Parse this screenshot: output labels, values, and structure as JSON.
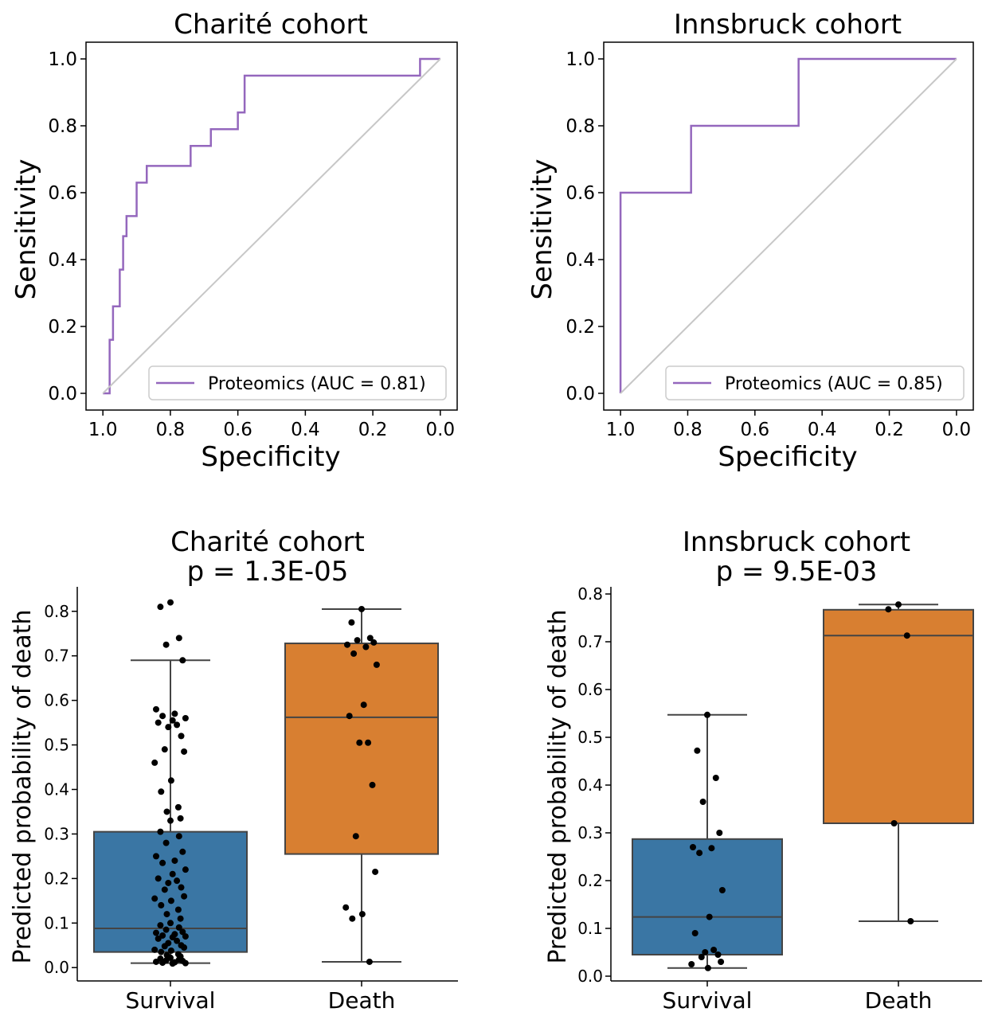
{
  "chart_data": [
    {
      "type": "line",
      "title": "Charité cohort",
      "xlabel": "Specificity",
      "ylabel": "Sensitivity",
      "xlim": [
        1.05,
        -0.05
      ],
      "ylim": [
        -0.05,
        1.05
      ],
      "x_ticks": [
        "1.0",
        "0.8",
        "0.6",
        "0.4",
        "0.2",
        "0.0"
      ],
      "y_ticks": [
        "0.0",
        "0.2",
        "0.4",
        "0.6",
        "0.8",
        "1.0"
      ],
      "legend": "lower-right",
      "series": [
        {
          "name": "Proteomics (AUC = 0.81)",
          "color": "#9467bd",
          "x": [
            1.0,
            0.98,
            0.98,
            0.97,
            0.97,
            0.95,
            0.95,
            0.94,
            0.94,
            0.93,
            0.93,
            0.9,
            0.9,
            0.87,
            0.87,
            0.83,
            0.83,
            0.74,
            0.74,
            0.68,
            0.68,
            0.6,
            0.6,
            0.58,
            0.58,
            0.06,
            0.06,
            0.0
          ],
          "y": [
            0.0,
            0.0,
            0.16,
            0.16,
            0.26,
            0.26,
            0.37,
            0.37,
            0.47,
            0.47,
            0.53,
            0.53,
            0.63,
            0.63,
            0.68,
            0.68,
            0.68,
            0.68,
            0.74,
            0.74,
            0.79,
            0.79,
            0.84,
            0.84,
            0.95,
            0.95,
            1.0,
            1.0
          ]
        },
        {
          "name": "",
          "color": "#c7c7c7",
          "x": [
            1.0,
            0.0
          ],
          "y": [
            0.0,
            1.0
          ]
        }
      ]
    },
    {
      "type": "line",
      "title": "Innsbruck cohort",
      "xlabel": "Specificity",
      "ylabel": "Sensitivity",
      "xlim": [
        1.05,
        -0.05
      ],
      "ylim": [
        -0.05,
        1.05
      ],
      "x_ticks": [
        "1.0",
        "0.8",
        "0.6",
        "0.4",
        "0.2",
        "0.0"
      ],
      "y_ticks": [
        "0.0",
        "0.2",
        "0.4",
        "0.6",
        "0.8",
        "1.0"
      ],
      "legend": "lower-right",
      "series": [
        {
          "name": "Proteomics (AUC = 0.85)",
          "color": "#9467bd",
          "x": [
            1.0,
            1.0,
            0.79,
            0.79,
            0.47,
            0.47,
            0.0
          ],
          "y": [
            0.0,
            0.6,
            0.6,
            0.8,
            0.8,
            1.0,
            1.0
          ]
        },
        {
          "name": "",
          "color": "#c7c7c7",
          "x": [
            1.0,
            0.0
          ],
          "y": [
            0.0,
            1.0
          ]
        }
      ]
    },
    {
      "type": "box",
      "title": [
        "Charité cohort",
        "p = 1.3E-05"
      ],
      "xlabel": "",
      "ylabel": "Predicted probability of death",
      "ylim": [
        -0.03,
        0.855
      ],
      "y_ticks": [
        "0.0",
        "0.1",
        "0.2",
        "0.3",
        "0.4",
        "0.5",
        "0.6",
        "0.7",
        "0.8"
      ],
      "categories": [
        "Survival",
        "Death"
      ],
      "boxes": [
        {
          "category": "Survival",
          "color": "#3a76a4",
          "whisker_low": 0.01,
          "q1": 0.035,
          "median": 0.088,
          "q3": 0.305,
          "whisker_high": 0.69,
          "points": [
            0.82,
            0.81,
            0.74,
            0.725,
            0.69,
            0.58,
            0.57,
            0.565,
            0.56,
            0.555,
            0.55,
            0.545,
            0.54,
            0.52,
            0.49,
            0.485,
            0.46,
            0.42,
            0.395,
            0.36,
            0.35,
            0.335,
            0.33,
            0.305,
            0.295,
            0.28,
            0.26,
            0.25,
            0.24,
            0.235,
            0.22,
            0.21,
            0.2,
            0.195,
            0.19,
            0.18,
            0.175,
            0.16,
            0.155,
            0.15,
            0.14,
            0.13,
            0.12,
            0.11,
            0.1,
            0.095,
            0.09,
            0.085,
            0.08,
            0.078,
            0.075,
            0.072,
            0.07,
            0.068,
            0.065,
            0.06,
            0.055,
            0.05,
            0.048,
            0.045,
            0.04,
            0.038,
            0.035,
            0.03,
            0.028,
            0.025,
            0.022,
            0.02,
            0.018,
            0.016,
            0.015,
            0.013,
            0.012,
            0.011,
            0.01,
            0.009
          ]
        },
        {
          "category": "Death",
          "color": "#d87f31",
          "whisker_low": 0.013,
          "q1": 0.255,
          "median": 0.562,
          "q3": 0.728,
          "whisker_high": 0.805,
          "points": [
            0.805,
            0.775,
            0.74,
            0.735,
            0.73,
            0.725,
            0.72,
            0.705,
            0.68,
            0.59,
            0.565,
            0.505,
            0.505,
            0.41,
            0.295,
            0.215,
            0.135,
            0.12,
            0.11,
            0.013
          ]
        }
      ]
    },
    {
      "type": "box",
      "title": [
        "Innsbruck cohort",
        "p = 9.5E-03"
      ],
      "xlabel": "",
      "ylabel": "Predicted probability of death",
      "ylim": [
        -0.01,
        0.815
      ],
      "y_ticks": [
        "0.0",
        "0.1",
        "0.2",
        "0.3",
        "0.4",
        "0.5",
        "0.6",
        "0.7",
        "0.8"
      ],
      "categories": [
        "Survival",
        "Death"
      ],
      "boxes": [
        {
          "category": "Survival",
          "color": "#3a76a4",
          "whisker_low": 0.017,
          "q1": 0.045,
          "median": 0.124,
          "q3": 0.287,
          "whisker_high": 0.547,
          "points": [
            0.547,
            0.472,
            0.415,
            0.365,
            0.3,
            0.27,
            0.268,
            0.258,
            0.18,
            0.124,
            0.09,
            0.055,
            0.05,
            0.045,
            0.04,
            0.03,
            0.025,
            0.017
          ]
        },
        {
          "category": "Death",
          "color": "#d87f31",
          "whisker_low": 0.115,
          "q1": 0.32,
          "median": 0.713,
          "q3": 0.767,
          "whisker_high": 0.778,
          "points": [
            0.778,
            0.768,
            0.713,
            0.32,
            0.115
          ]
        }
      ]
    }
  ]
}
